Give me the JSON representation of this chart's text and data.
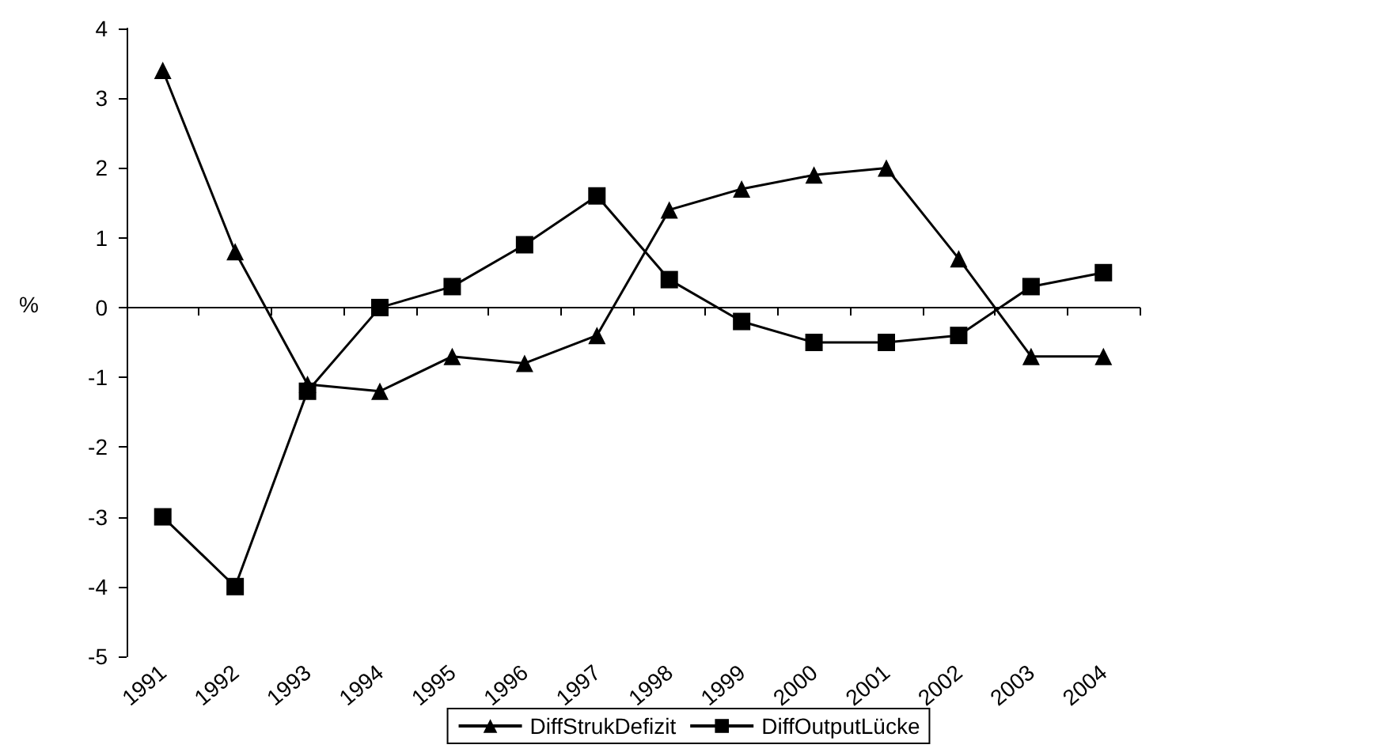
{
  "chart_data": {
    "type": "line",
    "ylabel": "%",
    "categories": [
      "1991",
      "1992",
      "1993",
      "1994",
      "1995",
      "1996",
      "1997",
      "1998",
      "1999",
      "2000",
      "2001",
      "2002",
      "2003",
      "2004"
    ],
    "series": [
      {
        "name": "DiffStrukDefizit",
        "color": "#000000",
        "marker": "triangle",
        "values": [
          3.4,
          0.8,
          -1.1,
          -1.2,
          -0.7,
          -0.8,
          -0.4,
          1.4,
          1.7,
          1.9,
          2.0,
          0.7,
          -0.7,
          -0.7
        ]
      },
      {
        "name": "DiffOutputLücke",
        "color": "#000000",
        "marker": "square",
        "values": [
          -3,
          -4,
          -1.2,
          0,
          0.3,
          0.9,
          1.6,
          0.4,
          -0.2,
          -0.5,
          -0.5,
          -0.4,
          0.3,
          0.5
        ]
      }
    ],
    "ylim": [
      -5,
      4
    ],
    "yticks": [
      -5,
      -4,
      -3,
      -2,
      -1,
      0,
      1,
      2,
      3,
      4
    ],
    "legend": "bottom",
    "line_style": "solid"
  }
}
